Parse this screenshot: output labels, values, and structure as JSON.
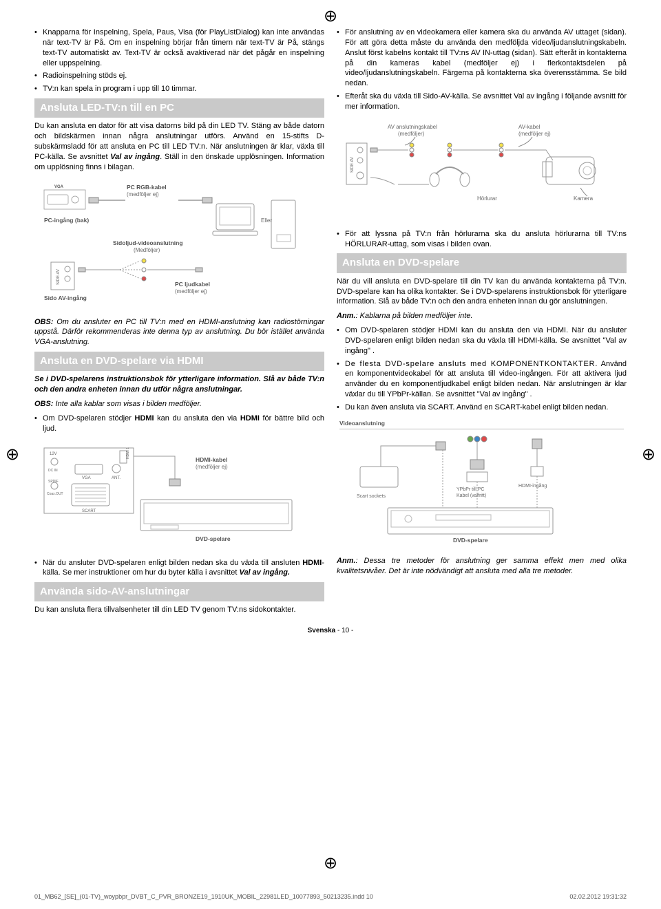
{
  "crop_glyph": "⊕",
  "left": {
    "bullets1": [
      "Knapparna för Inspelning, Spela, Paus, Visa (för PlayListDialog) kan inte användas när text-TV är På. Om en inspelning börjar från timern när text-TV är På, stängs text-TV automatiskt av. Text-TV är också avaktiverad när det pågår en inspelning eller uppspelning.",
      "Radioinspelning stöds ej.",
      "TV:n kan spela in program i upp till 10 timmar."
    ],
    "h1": "Ansluta LED-TV:n till en PC",
    "p1": "Du kan ansluta en dator för att visa datorns bild på din LED TV. Stäng av både datorn och bildskärmen innan några anslutningar utförs. Använd en 15-stifts D-subskärmsladd för att ansluta en PC till LED TV:n. När anslutningen är klar, växla till PC-källa. Se avsnittet ",
    "p1b": "Val av ingång",
    "p1c": ". Ställ in den önskade upplösningen. Information om upplösning finns i bilagan.",
    "diagram1": {
      "vga": "VGA",
      "pc_rgb": "PC RGB-kabel",
      "pc_rgb2": "(medföljer ej)",
      "pc_in": "PC-ingång (bak)",
      "eller": "Eller",
      "side_audio": "Sidoljud-videoanslutning",
      "side_audio2": "(Medföljer)",
      "side_av": "SIDE AV",
      "side_av_in": "Sido AV-ingång",
      "pc_audio": "PC ljudkabel",
      "pc_audio2": "(medföljer ej)"
    },
    "obs1a": "OBS:",
    "obs1b": " Om du ansluter en PC till TV:n med en HDMI-anslutning kan radiostörningar uppstå. Därför rekommenderas inte denna typ av anslutning. Du bör istället använda VGA-anslutning.",
    "h2": "Ansluta en DVD-spelare via HDMI",
    "p2a": "Se i DVD-spelarens instruktionsbok för ytterligare information. Slå av både TV:n och den andra enheten innan du utför några anslutningar.",
    "obs2a": "OBS:",
    "obs2b": " Inte alla kablar som visas i bilden medföljer.",
    "bullets2": [
      "Om DVD-spelaren stödjer <b>HDMI</b> kan du ansluta den via <b>HDMI</b> för bättre bild och ljud."
    ],
    "diagram2": {
      "hdmi_cable": "HDMI-kabel",
      "hdmi_cable2": "(medföljer ej)",
      "dcin": "DC IN",
      "v12": "12V",
      "vga": "VGA",
      "ant": "ANT.",
      "spdif": "SPDIF",
      "coax": "Coax.OUT",
      "hdmi1": "HDMI 1",
      "scart": "SCART",
      "dvd": "DVD-spelare"
    },
    "bullets3": [
      "När du ansluter DVD-spelaren enligt bilden nedan ska du växla till ansluten <b>HDMI</b>-källa. Se mer instruktioner om hur du byter källa i avsnittet <b><i>Val av ingång.</i></b>"
    ],
    "h3": "Använda sido-AV-anslutningar",
    "p3": "Du kan ansluta flera tillvalsenheter till din LED TV genom TV:ns sidokontakter."
  },
  "right": {
    "bullets1": [
      "För anslutning av en videokamera eller kamera ska du använda AV uttaget (sidan). För att göra detta måste du använda den medföljda video/ljudanslutningskabeln. Anslut först kabelns kontakt till TV:ns AV IN-uttag (sidan). Sätt efteråt in kontakterna på din kameras kabel (medföljer ej) i flerkontaktsdelen på video/ljudanslutningskabeln. Färgerna på kontakterna ska överensstämma. Se bild nedan.",
      "Efteråt ska du växla till Sido-AV-källa. Se avsnittet Val av ingång i följande avsnitt för mer information."
    ],
    "diagram1": {
      "av_conn": "AV anslutningskabel",
      "av_conn2": "(medföljer)",
      "av_cable": "AV-kabel",
      "av_cable2": "(medföljer ej)",
      "side_av": "SIDE AV",
      "horlurar": "Hörlurar",
      "kamera": "Kamera"
    },
    "bullets2": [
      "För att lyssna på TV:n från hörlurarna ska du ansluta hörlurarna till TV:ns HÖRLURAR-uttag, som visas i bilden ovan."
    ],
    "h1": "Ansluta en DVD-spelare",
    "p1": "När du vill ansluta en DVD-spelare till din TV kan du använda kontakterna på TV:n. DVD-spelare kan ha olika kontakter. Se i DVD-spelarens instruktionsbok för ytterligare information. Slå av både TV:n och den andra enheten innan du gör anslutningen.",
    "anm1a": "Anm.",
    "anm1b": ": Kablarna på bilden medföljer inte.",
    "bullets3": [
      "Om DVD-spelaren stödjer HDMI kan du ansluta den via HDMI. När du ansluter DVD-spelaren enligt bilden nedan ska du växla till HDMI-källa. Se avsnittet \"Val av ingång\" .",
      "<span class=\"wrapped\">De flesta DVD-spelare ansluts med KOMPONENTKONTAKTER.</span> Använd en komponentvideokabel för att ansluta till video-ingången. För att aktivera ljud använder du en komponentljudkabel enligt bilden nedan. När anslutningen är klar växlar du till YPbPr-källan. Se avsnittet \"Val av ingång\" .",
      "Du kan även ansluta via SCART. Använd en SCART-kabel enligt bilden nedan."
    ],
    "diagram2": {
      "video_conn": "Videoanslutning",
      "scart": "Scart sockets",
      "ypbpr": "YPbPr till PC",
      "ypbpr2": "Kabel (valfritt)",
      "hdmi_in": "HDMI-ingång",
      "dvd": "DVD-spelare"
    },
    "anm2a": "Anm.",
    "anm2b": ": Dessa tre metoder för anslutning ger samma effekt men med olika kvalitetsnivåer. Det är inte nödvändigt att ansluta med alla tre metoder."
  },
  "footer": {
    "lang": "Svenska",
    "page": " - 10 -"
  },
  "printline": {
    "file": "01_MB62_[SE]_(01-TV)_woypbpr_DVBT_C_PVR_BRONZE19_1910UK_MOBIL_22981LED_10077893_50213235.indd   10",
    "date": "02.02.2012   19:31:32"
  }
}
